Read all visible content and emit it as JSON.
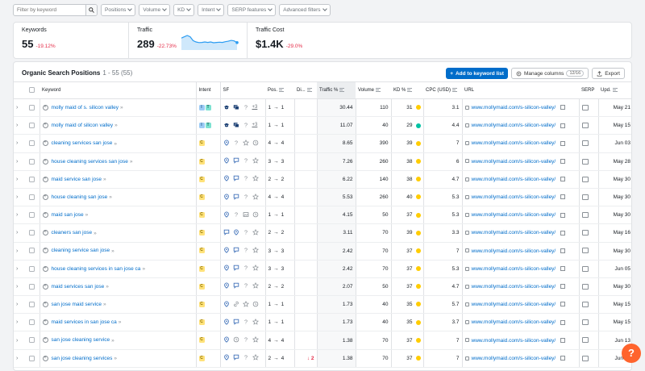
{
  "filters": {
    "search_placeholder": "Filter by keyword",
    "dropdowns": [
      "Positions",
      "Volume",
      "KD",
      "Intent",
      "SERP features",
      "Advanced filters"
    ]
  },
  "summary": {
    "keywords": {
      "label": "Keywords",
      "value": "55",
      "delta": "-19.12%"
    },
    "traffic": {
      "label": "Traffic",
      "value": "289",
      "delta": "-22.73%"
    },
    "traffic_cost": {
      "label": "Traffic Cost",
      "value": "$1.4K",
      "delta": "-29.0%"
    },
    "traffic_sparkline": [
      8,
      9,
      10,
      9,
      6,
      5,
      4.5,
      4.6,
      5,
      4.6,
      5,
      4.4,
      4.6,
      4.8,
      4.6,
      5.2,
      5.6,
      6.2,
      5.8,
      4.5
    ]
  },
  "panel": {
    "title": "Organic Search Positions",
    "count": "1 - 55 (55)",
    "add_button": "Add to keyword list",
    "manage_button": "Manage columns",
    "manage_badge": "12/16",
    "export_button": "Export"
  },
  "columns": [
    "Keyword",
    "Intent",
    "SF",
    "Pos.",
    "Di...",
    "Traffic %",
    "Volume",
    "KD %",
    "CPC (USD)",
    "URL",
    "SERP",
    "Upd."
  ],
  "url_text": "www.mollymaid.com/s-silicon-valley/",
  "colors": {
    "kd_yellow": "#ffcc00",
    "kd_green": "#00c2a3",
    "negative": "#e52d49",
    "link": "#006dca"
  },
  "rows": [
    {
      "keyword": "molly maid of s. silicon valley",
      "intent": [
        "I",
        "T"
      ],
      "sf": [
        "dark-icons",
        "question",
        "+3"
      ],
      "pos_from": "1",
      "pos_to": "1",
      "diff": "",
      "traffic": "30.44",
      "volume": "110",
      "kd": "31",
      "kd_color": "#ffcc00",
      "cpc": "3.1",
      "updated": "May 21"
    },
    {
      "keyword": "molly maid of silicon valley",
      "intent": [
        "I",
        "T"
      ],
      "sf": [
        "dark-icons",
        "question",
        "+3"
      ],
      "pos_from": "1",
      "pos_to": "1",
      "diff": "",
      "traffic": "11.07",
      "volume": "40",
      "kd": "29",
      "kd_color": "#00c2a3",
      "cpc": "4.4",
      "updated": "May 15"
    },
    {
      "keyword": "cleaning services san jose",
      "intent": [
        "C"
      ],
      "sf": [
        "pin",
        "question",
        "star",
        "clock"
      ],
      "pos_from": "4",
      "pos_to": "4",
      "diff": "",
      "traffic": "8.65",
      "volume": "390",
      "kd": "39",
      "kd_color": "#ffcc00",
      "cpc": "7",
      "updated": "Jun 03"
    },
    {
      "keyword": "house cleaning services san jose",
      "intent": [
        "C"
      ],
      "sf": [
        "pin",
        "chat",
        "question",
        "star"
      ],
      "pos_from": "3",
      "pos_to": "3",
      "diff": "",
      "traffic": "7.26",
      "volume": "260",
      "kd": "38",
      "kd_color": "#ffcc00",
      "cpc": "6",
      "updated": "May 28"
    },
    {
      "keyword": "maid service san jose",
      "intent": [
        "C"
      ],
      "sf": [
        "pin",
        "chat",
        "question",
        "star"
      ],
      "pos_from": "2",
      "pos_to": "2",
      "diff": "",
      "traffic": "6.22",
      "volume": "140",
      "kd": "38",
      "kd_color": "#ffcc00",
      "cpc": "4.7",
      "updated": "May 30"
    },
    {
      "keyword": "house cleaning san jose",
      "intent": [
        "C"
      ],
      "sf": [
        "pin",
        "chat",
        "question",
        "star"
      ],
      "pos_from": "4",
      "pos_to": "4",
      "diff": "",
      "traffic": "5.53",
      "volume": "260",
      "kd": "40",
      "kd_color": "#ffcc00",
      "cpc": "5.3",
      "updated": "May 30"
    },
    {
      "keyword": "maid san jose",
      "intent": [
        "C"
      ],
      "sf": [
        "pin",
        "question",
        "image",
        "clock"
      ],
      "pos_from": "1",
      "pos_to": "1",
      "diff": "",
      "traffic": "4.15",
      "volume": "50",
      "kd": "37",
      "kd_color": "#ffcc00",
      "cpc": "5.3",
      "updated": "May 30"
    },
    {
      "keyword": "cleaners san jose",
      "intent": [
        "C"
      ],
      "sf": [
        "chat",
        "pin",
        "question",
        "star"
      ],
      "pos_from": "2",
      "pos_to": "2",
      "diff": "",
      "traffic": "3.11",
      "volume": "70",
      "kd": "39",
      "kd_color": "#ffcc00",
      "cpc": "3.3",
      "updated": "May 16"
    },
    {
      "keyword": "cleaning service san jose",
      "intent": [
        "C"
      ],
      "sf": [
        "pin",
        "chat",
        "question",
        "star"
      ],
      "pos_from": "3",
      "pos_to": "3",
      "diff": "",
      "traffic": "2.42",
      "volume": "70",
      "kd": "37",
      "kd_color": "#ffcc00",
      "cpc": "7",
      "updated": "May 30"
    },
    {
      "keyword": "house cleaning services in san jose ca",
      "intent": [
        "C"
      ],
      "sf": [
        "pin",
        "chat",
        "question",
        "star"
      ],
      "pos_from": "3",
      "pos_to": "3",
      "diff": "",
      "traffic": "2.42",
      "volume": "70",
      "kd": "37",
      "kd_color": "#ffcc00",
      "cpc": "5.3",
      "updated": "Jun 05"
    },
    {
      "keyword": "maid services san jose",
      "intent": [
        "C"
      ],
      "sf": [
        "pin",
        "chat",
        "question",
        "star"
      ],
      "pos_from": "2",
      "pos_to": "2",
      "diff": "",
      "traffic": "2.07",
      "volume": "50",
      "kd": "37",
      "kd_color": "#ffcc00",
      "cpc": "4.7",
      "updated": "May 30"
    },
    {
      "keyword": "san jose maid service",
      "intent": [
        "C"
      ],
      "sf": [
        "pin",
        "link",
        "star",
        "clock"
      ],
      "pos_from": "1",
      "pos_to": "1",
      "diff": "",
      "traffic": "1.73",
      "volume": "40",
      "kd": "35",
      "kd_color": "#ffcc00",
      "cpc": "5.7",
      "updated": "May 15"
    },
    {
      "keyword": "maid services in san jose ca",
      "intent": [
        "C"
      ],
      "sf": [
        "pin",
        "chat",
        "question",
        "star"
      ],
      "pos_from": "1",
      "pos_to": "1",
      "diff": "",
      "traffic": "1.73",
      "volume": "40",
      "kd": "35",
      "kd_color": "#ffcc00",
      "cpc": "3.7",
      "updated": "May 15"
    },
    {
      "keyword": "san jose cleaning service",
      "intent": [
        "C"
      ],
      "sf": [
        "pin",
        "clock",
        "question",
        "star"
      ],
      "pos_from": "4",
      "pos_to": "4",
      "diff": "",
      "traffic": "1.38",
      "volume": "70",
      "kd": "37",
      "kd_color": "#ffcc00",
      "cpc": "7",
      "updated": "Jun 13"
    },
    {
      "keyword": "san jose cleaning services",
      "intent": [
        "C"
      ],
      "sf": [
        "pin",
        "chat",
        "question",
        "star"
      ],
      "pos_from": "2",
      "pos_to": "4",
      "diff": "2",
      "traffic": "1.38",
      "volume": "70",
      "kd": "37",
      "kd_color": "#ffcc00",
      "cpc": "7",
      "updated": "Jun 03"
    }
  ],
  "help_label": "?"
}
